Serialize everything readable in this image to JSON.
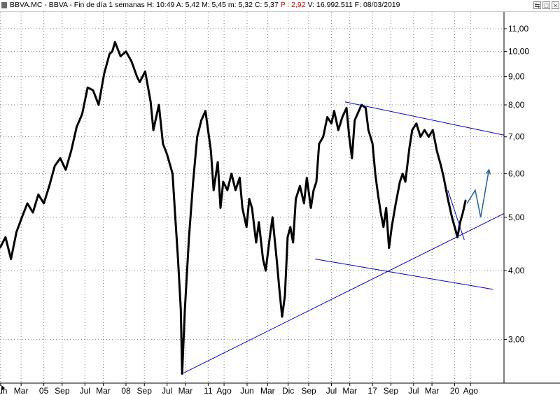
{
  "header": {
    "symbol": "BBVA.MC - BBVA - Fin de día 1 semanas",
    "fields": [
      {
        "key": "H:",
        "value": "10:49",
        "color": "#000000"
      },
      {
        "key": "A:",
        "value": "5,42",
        "color": "#000000"
      },
      {
        "key": "M:",
        "value": "5,45",
        "color": "#000000"
      },
      {
        "key": "m:",
        "value": "5,32",
        "color": "#000000"
      },
      {
        "key": "C:",
        "value": "5,37",
        "color": "#000000"
      },
      {
        "key": "P :",
        "value": "2,92",
        "color": "#e00000"
      },
      {
        "key": "V:",
        "value": "16.992.511",
        "color": "#000000"
      },
      {
        "key": "F:",
        "value": "08/03/2019",
        "color": "#000000"
      }
    ],
    "buttons": [
      {
        "name": "sync-button",
        "icon": "sync-icon",
        "glyph": "⇆"
      },
      {
        "name": "maximize-button",
        "icon": "maximize-icon",
        "glyph": "□"
      },
      {
        "name": "close-button",
        "icon": "close-icon",
        "glyph": "×"
      }
    ]
  },
  "chart_data": {
    "type": "line",
    "scale": "log",
    "ylim": [
      2.5,
      11.8
    ],
    "x_range": [
      2002.4,
      2020.8
    ],
    "y_ticks": [
      {
        "label": "11,00",
        "value": 11
      },
      {
        "label": "10,00",
        "value": 10
      },
      {
        "label": "9,00",
        "value": 9
      },
      {
        "label": "8,00",
        "value": 8
      },
      {
        "label": "7,00",
        "value": 7
      },
      {
        "label": "6,00",
        "value": 6
      },
      {
        "label": "5,00",
        "value": 5
      },
      {
        "label": "4,00",
        "value": 4
      },
      {
        "label": "3,00",
        "value": 3
      }
    ],
    "x_ticks": [
      {
        "label": "Jun",
        "x": 2002.42
      },
      {
        "label": "Mar",
        "x": 2003.17
      },
      {
        "label": "05",
        "x": 2004.0
      },
      {
        "label": "Sep",
        "x": 2004.67
      },
      {
        "label": "Jul",
        "x": 2005.5
      },
      {
        "label": "Mar",
        "x": 2006.17
      },
      {
        "label": "08",
        "x": 2007.0
      },
      {
        "label": "Sep",
        "x": 2007.67
      },
      {
        "label": "Jul",
        "x": 2008.5
      },
      {
        "label": "Mar",
        "x": 2009.17
      },
      {
        "label": "11",
        "x": 2010.0
      },
      {
        "label": "Ago",
        "x": 2010.58
      },
      {
        "label": "Jun",
        "x": 2011.42
      },
      {
        "label": "Mar",
        "x": 2012.17
      },
      {
        "label": "Dic",
        "x": 2012.92
      },
      {
        "label": "Sep",
        "x": 2013.67
      },
      {
        "label": "Jul",
        "x": 2014.5
      },
      {
        "label": "Mar",
        "x": 2015.17
      },
      {
        "label": "17",
        "x": 2016.0
      },
      {
        "label": "Sep",
        "x": 2016.67
      },
      {
        "label": "Jul",
        "x": 2017.5
      },
      {
        "label": "Mar",
        "x": 2018.17
      },
      {
        "label": "20",
        "x": 2019.0
      },
      {
        "label": "Ago",
        "x": 2019.58
      }
    ],
    "grid": true,
    "series": [
      {
        "color": "#000000",
        "points": [
          [
            2002.4,
            4.4
          ],
          [
            2002.6,
            4.6
          ],
          [
            2002.8,
            4.2
          ],
          [
            2003.0,
            4.7
          ],
          [
            2003.2,
            5.0
          ],
          [
            2003.4,
            5.3
          ],
          [
            2003.6,
            5.1
          ],
          [
            2003.8,
            5.5
          ],
          [
            2004.0,
            5.3
          ],
          [
            2004.2,
            5.7
          ],
          [
            2004.4,
            6.2
          ],
          [
            2004.6,
            6.4
          ],
          [
            2004.8,
            6.1
          ],
          [
            2005.0,
            6.6
          ],
          [
            2005.2,
            7.3
          ],
          [
            2005.4,
            7.7
          ],
          [
            2005.6,
            8.6
          ],
          [
            2005.8,
            8.5
          ],
          [
            2006.0,
            8.0
          ],
          [
            2006.2,
            9.1
          ],
          [
            2006.4,
            9.9
          ],
          [
            2006.5,
            10.0
          ],
          [
            2006.6,
            10.4
          ],
          [
            2006.8,
            9.8
          ],
          [
            2007.0,
            10.0
          ],
          [
            2007.2,
            9.6
          ],
          [
            2007.4,
            9.0
          ],
          [
            2007.5,
            8.8
          ],
          [
            2007.7,
            9.2
          ],
          [
            2007.9,
            8.1
          ],
          [
            2008.0,
            7.2
          ],
          [
            2008.2,
            8.0
          ],
          [
            2008.35,
            6.8
          ],
          [
            2008.5,
            6.5
          ],
          [
            2008.7,
            6.0
          ],
          [
            2008.8,
            5.0
          ],
          [
            2008.9,
            4.2
          ],
          [
            2009.0,
            3.4
          ],
          [
            2009.05,
            2.6
          ],
          [
            2009.15,
            3.4
          ],
          [
            2009.3,
            4.6
          ],
          [
            2009.45,
            5.8
          ],
          [
            2009.6,
            7.0
          ],
          [
            2009.75,
            7.5
          ],
          [
            2009.9,
            7.8
          ],
          [
            2010.1,
            6.6
          ],
          [
            2010.2,
            5.6
          ],
          [
            2010.35,
            6.3
          ],
          [
            2010.45,
            5.2
          ],
          [
            2010.55,
            5.8
          ],
          [
            2010.7,
            5.6
          ],
          [
            2010.85,
            6.0
          ],
          [
            2011.0,
            5.6
          ],
          [
            2011.15,
            5.9
          ],
          [
            2011.25,
            5.2
          ],
          [
            2011.4,
            4.8
          ],
          [
            2011.5,
            5.4
          ],
          [
            2011.6,
            5.2
          ],
          [
            2011.75,
            4.5
          ],
          [
            2011.85,
            4.9
          ],
          [
            2012.0,
            4.2
          ],
          [
            2012.1,
            4.0
          ],
          [
            2012.25,
            4.6
          ],
          [
            2012.35,
            5.0
          ],
          [
            2012.5,
            4.2
          ],
          [
            2012.6,
            3.7
          ],
          [
            2012.7,
            3.3
          ],
          [
            2012.8,
            3.6
          ],
          [
            2012.9,
            4.6
          ],
          [
            2013.0,
            4.8
          ],
          [
            2013.1,
            4.5
          ],
          [
            2013.2,
            5.4
          ],
          [
            2013.35,
            5.7
          ],
          [
            2013.5,
            5.3
          ],
          [
            2013.6,
            5.9
          ],
          [
            2013.75,
            5.2
          ],
          [
            2013.85,
            5.6
          ],
          [
            2013.95,
            5.8
          ],
          [
            2014.05,
            6.8
          ],
          [
            2014.2,
            7.0
          ],
          [
            2014.35,
            7.6
          ],
          [
            2014.5,
            7.4
          ],
          [
            2014.6,
            7.8
          ],
          [
            2014.75,
            7.2
          ],
          [
            2014.9,
            7.6
          ],
          [
            2015.05,
            7.9
          ],
          [
            2015.15,
            7.0
          ],
          [
            2015.25,
            6.4
          ],
          [
            2015.35,
            7.5
          ],
          [
            2015.5,
            7.8
          ],
          [
            2015.6,
            8.0
          ],
          [
            2015.75,
            7.9
          ],
          [
            2015.85,
            7.2
          ],
          [
            2016.0,
            6.8
          ],
          [
            2016.1,
            6.0
          ],
          [
            2016.2,
            5.5
          ],
          [
            2016.3,
            5.1
          ],
          [
            2016.4,
            4.8
          ],
          [
            2016.5,
            5.2
          ],
          [
            2016.6,
            4.4
          ],
          [
            2016.7,
            4.8
          ],
          [
            2016.85,
            5.3
          ],
          [
            2017.0,
            5.8
          ],
          [
            2017.1,
            6.0
          ],
          [
            2017.2,
            5.8
          ],
          [
            2017.35,
            6.7
          ],
          [
            2017.45,
            7.2
          ],
          [
            2017.6,
            7.4
          ],
          [
            2017.75,
            7.0
          ],
          [
            2017.9,
            7.2
          ],
          [
            2018.05,
            7.0
          ],
          [
            2018.2,
            7.2
          ],
          [
            2018.35,
            6.6
          ],
          [
            2018.5,
            6.2
          ],
          [
            2018.6,
            5.9
          ],
          [
            2018.75,
            5.4
          ],
          [
            2018.9,
            5.0
          ],
          [
            2019.0,
            4.8
          ],
          [
            2019.1,
            4.6
          ],
          [
            2019.2,
            4.9
          ],
          [
            2019.3,
            5.1
          ],
          [
            2019.4,
            5.37
          ]
        ]
      }
    ],
    "trendlines": [
      {
        "color": "#0000cc",
        "from": [
          2009.05,
          2.6
        ],
        "to": [
          2020.8,
          5.08
        ]
      },
      {
        "color": "#0000cc",
        "from": [
          2015.0,
          8.1
        ],
        "to": [
          2020.8,
          7.05
        ]
      },
      {
        "color": "#0000cc",
        "from": [
          2013.9,
          4.2
        ],
        "to": [
          2020.4,
          3.7
        ]
      },
      {
        "color": "#0000cc",
        "from": [
          2018.75,
          5.6
        ],
        "to": [
          2019.35,
          4.55
        ]
      }
    ],
    "projection": {
      "color": "#1f5f9f",
      "points": [
        [
          2019.45,
          5.3
        ],
        [
          2019.75,
          5.6
        ],
        [
          2019.95,
          5.0
        ],
        [
          2020.25,
          6.1
        ]
      ]
    }
  }
}
